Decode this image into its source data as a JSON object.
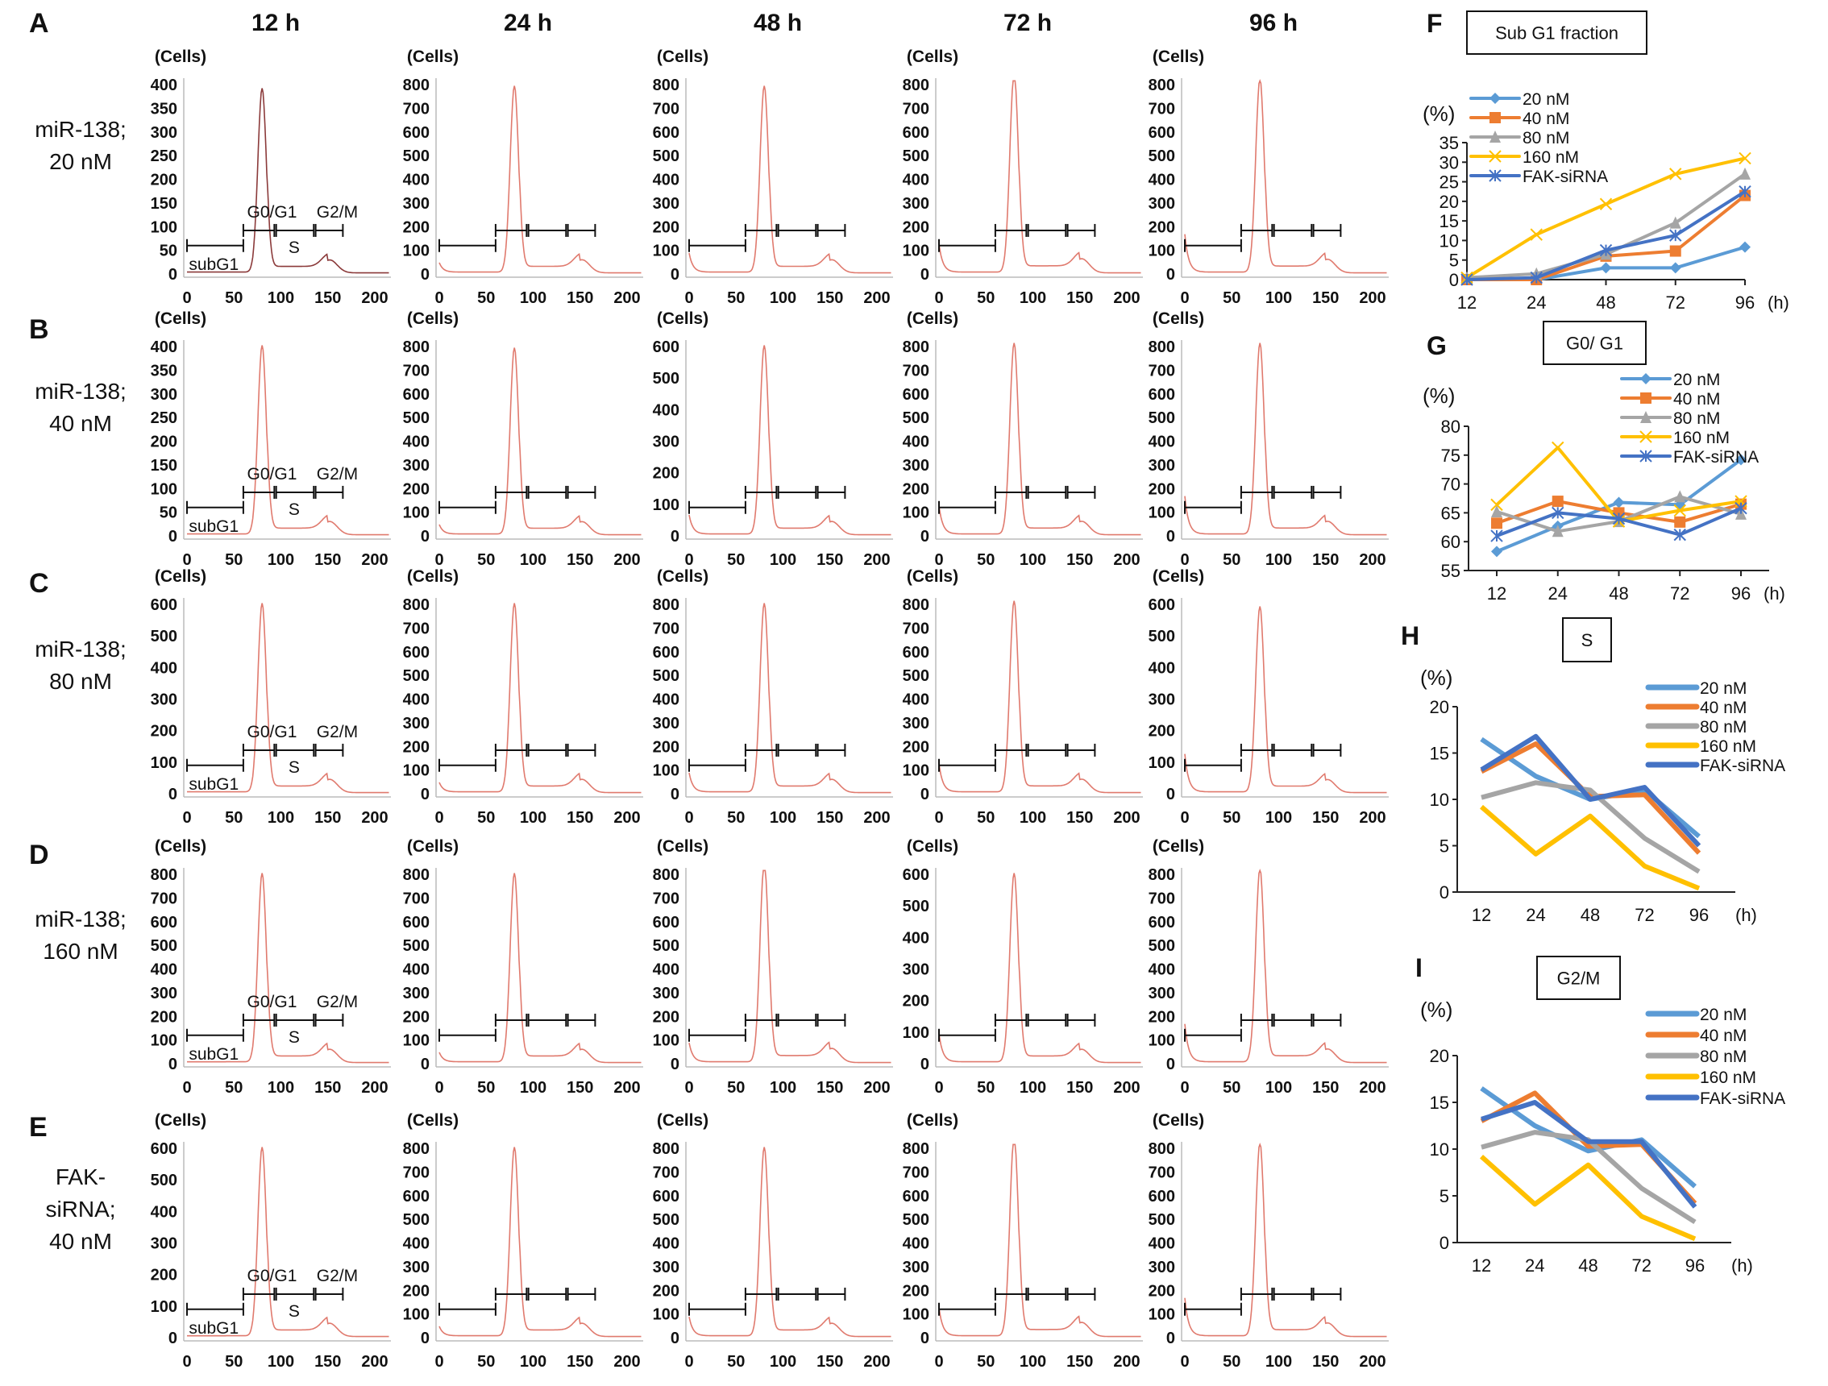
{
  "columns": [
    "12 h",
    "24 h",
    "48 h",
    "72 h",
    "96 h"
  ],
  "rows": [
    {
      "letter": "A",
      "label": [
        "miR-138;",
        "20 nM"
      ]
    },
    {
      "letter": "B",
      "label": [
        "miR-138;",
        "40 nM"
      ]
    },
    {
      "letter": "C",
      "label": [
        "miR-138;",
        "80 nM"
      ]
    },
    {
      "letter": "D",
      "label": [
        "miR-138;",
        "160 nM"
      ]
    },
    {
      "letter": "E",
      "label": [
        "FAK-",
        "siRNA;",
        "40 nM"
      ]
    }
  ],
  "histogram_axis_label": "(Cells)",
  "gate_labels": {
    "subg1": "subG1",
    "g0g1": "G0/G1",
    "s": "S",
    "g2m": "G2/M"
  },
  "histogram_colors": {
    "curve": "#e07a6e",
    "curve_dark": "#8b3a3a",
    "gate": "#111111"
  },
  "chart_data": [
    {
      "type": "histogram",
      "row": "A",
      "column": "12 h",
      "x_ticks": [
        0,
        50,
        100,
        150,
        200
      ],
      "y_ticks": [
        0,
        50,
        100,
        150,
        200,
        250,
        300,
        350,
        400
      ],
      "g0g1_peak_cells": 390
    },
    {
      "type": "histogram",
      "row": "A",
      "column": "24 h",
      "x_ticks": [
        0,
        50,
        100,
        150,
        200
      ],
      "y_ticks": [
        0,
        100,
        200,
        300,
        400,
        500,
        600,
        700,
        800
      ],
      "g0g1_peak_cells": 790
    },
    {
      "type": "histogram",
      "row": "A",
      "column": "48 h",
      "x_ticks": [
        0,
        50,
        100,
        150,
        200
      ],
      "y_ticks": [
        0,
        100,
        200,
        300,
        400,
        500,
        600,
        700,
        800
      ],
      "g0g1_peak_cells": 790
    },
    {
      "type": "histogram",
      "row": "A",
      "column": "72 h",
      "x_ticks": [
        0,
        50,
        100,
        150,
        200
      ],
      "y_ticks": [
        0,
        100,
        200,
        300,
        400,
        500,
        600,
        700,
        800
      ],
      "g0g1_peak_cells": 850
    },
    {
      "type": "histogram",
      "row": "A",
      "column": "96 h",
      "x_ticks": [
        0,
        50,
        100,
        150,
        200
      ],
      "y_ticks": [
        0,
        100,
        200,
        300,
        400,
        500,
        600,
        700,
        800
      ],
      "g0g1_peak_cells": 820
    },
    {
      "type": "histogram",
      "row": "B",
      "column": "12 h",
      "x_ticks": [
        0,
        50,
        100,
        150,
        200
      ],
      "y_ticks": [
        0,
        50,
        100,
        150,
        200,
        250,
        300,
        350,
        400
      ],
      "g0g1_peak_cells": 400
    },
    {
      "type": "histogram",
      "row": "B",
      "column": "24 h",
      "x_ticks": [
        0,
        50,
        100,
        150,
        200
      ],
      "y_ticks": [
        0,
        100,
        200,
        300,
        400,
        500,
        600,
        700,
        800
      ],
      "g0g1_peak_cells": 790
    },
    {
      "type": "histogram",
      "row": "B",
      "column": "48 h",
      "x_ticks": [
        0,
        50,
        100,
        150,
        200
      ],
      "y_ticks": [
        0,
        100,
        200,
        300,
        400,
        500,
        600
      ],
      "g0g1_peak_cells": 600
    },
    {
      "type": "histogram",
      "row": "B",
      "column": "72 h",
      "x_ticks": [
        0,
        50,
        100,
        150,
        200
      ],
      "y_ticks": [
        0,
        100,
        200,
        300,
        400,
        500,
        600,
        700,
        800
      ],
      "g0g1_peak_cells": 810
    },
    {
      "type": "histogram",
      "row": "B",
      "column": "96 h",
      "x_ticks": [
        0,
        50,
        100,
        150,
        200
      ],
      "y_ticks": [
        0,
        100,
        200,
        300,
        400,
        500,
        600,
        700,
        800
      ],
      "g0g1_peak_cells": 810
    },
    {
      "type": "histogram",
      "row": "C",
      "column": "12 h",
      "x_ticks": [
        0,
        50,
        100,
        150,
        200
      ],
      "y_ticks": [
        0,
        100,
        200,
        300,
        400,
        500,
        600
      ],
      "g0g1_peak_cells": 600
    },
    {
      "type": "histogram",
      "row": "C",
      "column": "24 h",
      "x_ticks": [
        0,
        50,
        100,
        150,
        200
      ],
      "y_ticks": [
        0,
        100,
        200,
        300,
        400,
        500,
        600,
        700,
        800
      ],
      "g0g1_peak_cells": 800
    },
    {
      "type": "histogram",
      "row": "C",
      "column": "48 h",
      "x_ticks": [
        0,
        50,
        100,
        150,
        200
      ],
      "y_ticks": [
        0,
        100,
        200,
        300,
        400,
        500,
        600,
        700,
        800
      ],
      "g0g1_peak_cells": 800
    },
    {
      "type": "histogram",
      "row": "C",
      "column": "72 h",
      "x_ticks": [
        0,
        50,
        100,
        150,
        200
      ],
      "y_ticks": [
        0,
        100,
        200,
        300,
        400,
        500,
        600,
        700,
        800
      ],
      "g0g1_peak_cells": 810
    },
    {
      "type": "histogram",
      "row": "C",
      "column": "96 h",
      "x_ticks": [
        0,
        50,
        100,
        150,
        200
      ],
      "y_ticks": [
        0,
        100,
        200,
        300,
        400,
        500,
        600
      ],
      "g0g1_peak_cells": 590
    },
    {
      "type": "histogram",
      "row": "D",
      "column": "12 h",
      "x_ticks": [
        0,
        50,
        100,
        150,
        200
      ],
      "y_ticks": [
        0,
        100,
        200,
        300,
        400,
        500,
        600,
        700,
        800
      ],
      "g0g1_peak_cells": 800
    },
    {
      "type": "histogram",
      "row": "D",
      "column": "24 h",
      "x_ticks": [
        0,
        50,
        100,
        150,
        200
      ],
      "y_ticks": [
        0,
        100,
        200,
        300,
        400,
        500,
        600,
        700,
        800
      ],
      "g0g1_peak_cells": 800
    },
    {
      "type": "histogram",
      "row": "D",
      "column": "48 h",
      "x_ticks": [
        0,
        50,
        100,
        150,
        200
      ],
      "y_ticks": [
        0,
        100,
        200,
        300,
        400,
        500,
        600,
        700,
        800
      ],
      "g0g1_peak_cells": 850
    },
    {
      "type": "histogram",
      "row": "D",
      "column": "72 h",
      "x_ticks": [
        0,
        50,
        100,
        150,
        200
      ],
      "y_ticks": [
        0,
        100,
        200,
        300,
        400,
        500,
        600
      ],
      "g0g1_peak_cells": 600
    },
    {
      "type": "histogram",
      "row": "D",
      "column": "96 h",
      "x_ticks": [
        0,
        50,
        100,
        150,
        200
      ],
      "y_ticks": [
        0,
        100,
        200,
        300,
        400,
        500,
        600,
        700,
        800
      ],
      "g0g1_peak_cells": 820
    },
    {
      "type": "histogram",
      "row": "E",
      "column": "12 h",
      "x_ticks": [
        0,
        50,
        100,
        150,
        200
      ],
      "y_ticks": [
        0,
        100,
        200,
        300,
        400,
        500,
        600
      ],
      "g0g1_peak_cells": 600
    },
    {
      "type": "histogram",
      "row": "E",
      "column": "24 h",
      "x_ticks": [
        0,
        50,
        100,
        150,
        200
      ],
      "y_ticks": [
        0,
        100,
        200,
        300,
        400,
        500,
        600,
        700,
        800
      ],
      "g0g1_peak_cells": 800
    },
    {
      "type": "histogram",
      "row": "E",
      "column": "48 h",
      "x_ticks": [
        0,
        50,
        100,
        150,
        200
      ],
      "y_ticks": [
        0,
        100,
        200,
        300,
        400,
        500,
        600,
        700,
        800
      ],
      "g0g1_peak_cells": 800
    },
    {
      "type": "histogram",
      "row": "E",
      "column": "72 h",
      "x_ticks": [
        0,
        50,
        100,
        150,
        200
      ],
      "y_ticks": [
        0,
        100,
        200,
        300,
        400,
        500,
        600,
        700,
        800
      ],
      "g0g1_peak_cells": 850
    },
    {
      "type": "histogram",
      "row": "E",
      "column": "96 h",
      "x_ticks": [
        0,
        50,
        100,
        150,
        200
      ],
      "y_ticks": [
        0,
        100,
        200,
        300,
        400,
        500,
        600,
        700,
        800
      ],
      "g0g1_peak_cells": 820
    },
    {
      "type": "line",
      "letter": "F",
      "title": "Sub G1 fraction",
      "ylabel": "(%)",
      "xlabel": "(h)",
      "categories": [
        "12",
        "24",
        "48",
        "72",
        "96"
      ],
      "ylim": [
        0,
        35
      ],
      "y_ticks": [
        0,
        5,
        10,
        15,
        20,
        25,
        30,
        35
      ],
      "markers": true,
      "legend": "top-left",
      "series": [
        {
          "name": "20 nM",
          "color": "#5b9bd5",
          "marker": "diamond",
          "values": [
            0,
            0,
            3,
            3,
            8.3
          ]
        },
        {
          "name": "40 nM",
          "color": "#ed7d31",
          "marker": "square",
          "values": [
            0,
            0,
            6,
            7.3,
            21.5
          ]
        },
        {
          "name": "80 nM",
          "color": "#a5a5a5",
          "marker": "triangle",
          "values": [
            0.5,
            1.5,
            6.5,
            14.5,
            27
          ]
        },
        {
          "name": "160 nM",
          "color": "#ffc000",
          "marker": "x",
          "values": [
            0.5,
            11.5,
            19.3,
            27,
            31
          ]
        },
        {
          "name": "FAK-siRNA",
          "color": "#4472c4",
          "marker": "star",
          "values": [
            0,
            0.5,
            7.5,
            11.3,
            22.5
          ]
        }
      ]
    },
    {
      "type": "line",
      "letter": "G",
      "title": "G0/ G1",
      "ylabel": "(%)",
      "xlabel": "(h)",
      "categories": [
        "12",
        "24",
        "48",
        "72",
        "96"
      ],
      "ylim": [
        55,
        80
      ],
      "y_ticks": [
        55,
        60,
        65,
        70,
        75,
        80
      ],
      "markers": true,
      "legend": "top-right",
      "series": [
        {
          "name": "20 nM",
          "color": "#5b9bd5",
          "marker": "diamond",
          "values": [
            58.3,
            62.7,
            66.8,
            66.4,
            74.2
          ]
        },
        {
          "name": "40 nM",
          "color": "#ed7d31",
          "marker": "square",
          "values": [
            63.2,
            67,
            65,
            63.4,
            66.5
          ]
        },
        {
          "name": "80 nM",
          "color": "#a5a5a5",
          "marker": "triangle",
          "values": [
            65.2,
            61.8,
            63.5,
            67.8,
            64.8
          ]
        },
        {
          "name": "160 nM",
          "color": "#ffc000",
          "marker": "x",
          "values": [
            66.4,
            76.3,
            63.5,
            65.4,
            67
          ]
        },
        {
          "name": "FAK-siRNA",
          "color": "#4472c4",
          "marker": "star",
          "values": [
            61,
            65,
            64,
            61.2,
            65.8
          ]
        }
      ]
    },
    {
      "type": "line",
      "letter": "H",
      "title": "S",
      "ylabel": "(%)",
      "xlabel": "(h)",
      "categories": [
        "12",
        "24",
        "48",
        "72",
        "96"
      ],
      "ylim": [
        0,
        20
      ],
      "y_ticks": [
        0,
        5,
        10,
        15,
        20
      ],
      "markers": false,
      "legend": "top-right",
      "series": [
        {
          "name": "20 nM",
          "color": "#5b9bd5",
          "values": [
            16.5,
            12.5,
            10,
            11,
            6
          ]
        },
        {
          "name": "40 nM",
          "color": "#ed7d31",
          "values": [
            13,
            16,
            10.3,
            10.5,
            4.2
          ]
        },
        {
          "name": "80 nM",
          "color": "#a5a5a5",
          "values": [
            10.2,
            11.8,
            11,
            5.8,
            2.2
          ]
        },
        {
          "name": "160 nM",
          "color": "#ffc000",
          "values": [
            9.2,
            4.1,
            8.2,
            2.8,
            0.4
          ]
        },
        {
          "name": "FAK-siRNA",
          "color": "#4472c4",
          "values": [
            13.2,
            16.8,
            10,
            11.3,
            5
          ]
        }
      ]
    },
    {
      "type": "line",
      "letter": "I",
      "title": "G2/M",
      "ylabel": "(%)",
      "xlabel": "(h)",
      "categories": [
        "12",
        "24",
        "48",
        "72",
        "96"
      ],
      "ylim": [
        0,
        20
      ],
      "y_ticks": [
        0,
        5,
        10,
        15,
        20
      ],
      "markers": false,
      "legend": "top-right",
      "series": [
        {
          "name": "20 nM",
          "color": "#5b9bd5",
          "values": [
            16.5,
            12.5,
            9.8,
            11,
            6
          ]
        },
        {
          "name": "40 nM",
          "color": "#ed7d31",
          "values": [
            13,
            16,
            10.3,
            10.5,
            4.2
          ]
        },
        {
          "name": "80 nM",
          "color": "#a5a5a5",
          "values": [
            10.2,
            11.8,
            11,
            5.8,
            2.2
          ]
        },
        {
          "name": "160 nM",
          "color": "#ffc000",
          "values": [
            9.2,
            4.1,
            8.3,
            2.8,
            0.4
          ]
        },
        {
          "name": "FAK-siRNA",
          "color": "#4472c4",
          "values": [
            13.2,
            15,
            10.8,
            10.8,
            3.8
          ]
        }
      ]
    }
  ]
}
